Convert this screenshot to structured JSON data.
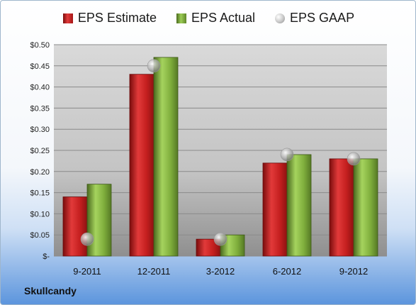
{
  "company": "Skullcandy",
  "chart_data": {
    "type": "bar",
    "categories": [
      "9-2011",
      "12-2011",
      "3-2012",
      "6-2012",
      "9-2012"
    ],
    "series": [
      {
        "name": "EPS Estimate",
        "values": [
          0.14,
          0.43,
          0.04,
          0.22,
          0.23
        ],
        "color": "#c81e1e"
      },
      {
        "name": "EPS Actual",
        "values": [
          0.17,
          0.47,
          0.05,
          0.24,
          0.23
        ],
        "color": "#7fae3c"
      },
      {
        "name": "EPS GAAP",
        "values": [
          0.04,
          0.45,
          0.04,
          0.24,
          0.23
        ],
        "color": "#b8b8b8"
      }
    ],
    "y_ticks": [
      "$-",
      "$0.05",
      "$0.10",
      "$0.15",
      "$0.20",
      "$0.25",
      "$0.30",
      "$0.35",
      "$0.40",
      "$0.45",
      "$0.50"
    ],
    "ylim": [
      0,
      0.5
    ],
    "legend_position": "top"
  }
}
